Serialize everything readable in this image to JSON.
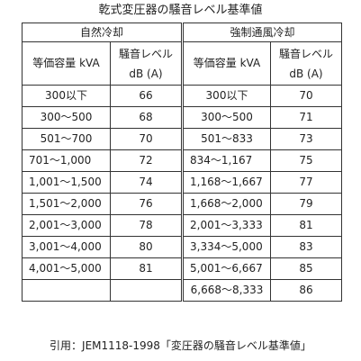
{
  "title": "乾式変圧器の騒音レベル基準値",
  "headers": {
    "natural": "自然冷却",
    "forced": "強制通風冷却",
    "capacity": "等価容量 kVA",
    "noise_line1": "騒音レベル",
    "noise_line2": "dB (A)"
  },
  "natural_rows": [
    {
      "capacity": "300以下",
      "db": "66"
    },
    {
      "capacity": "300〜500",
      "db": "68"
    },
    {
      "capacity": "501〜700",
      "db": "70"
    },
    {
      "capacity": "701〜1,000",
      "db": "72"
    },
    {
      "capacity": "1,001〜1,500",
      "db": "74"
    },
    {
      "capacity": "1,501〜2,000",
      "db": "76"
    },
    {
      "capacity": "2,001〜3,000",
      "db": "78"
    },
    {
      "capacity": "3,001〜4,000",
      "db": "80"
    },
    {
      "capacity": "4,001〜5,000",
      "db": "81"
    },
    {
      "capacity": "",
      "db": ""
    }
  ],
  "forced_rows": [
    {
      "capacity": "300以下",
      "db": "70"
    },
    {
      "capacity": "300〜500",
      "db": "71"
    },
    {
      "capacity": "501〜833",
      "db": "73"
    },
    {
      "capacity": "834〜1,167",
      "db": "75"
    },
    {
      "capacity": "1,168〜1,667",
      "db": "77"
    },
    {
      "capacity": "1,668〜2,000",
      "db": "79"
    },
    {
      "capacity": "2,001〜3,333",
      "db": "81"
    },
    {
      "capacity": "3,334〜5,000",
      "db": "83"
    },
    {
      "capacity": "5,001〜6,667",
      "db": "85"
    },
    {
      "capacity": "6,668〜8,333",
      "db": "86"
    }
  ],
  "caption": "引用：JEM1118-1998「変圧器の騒音レベル基準値」"
}
